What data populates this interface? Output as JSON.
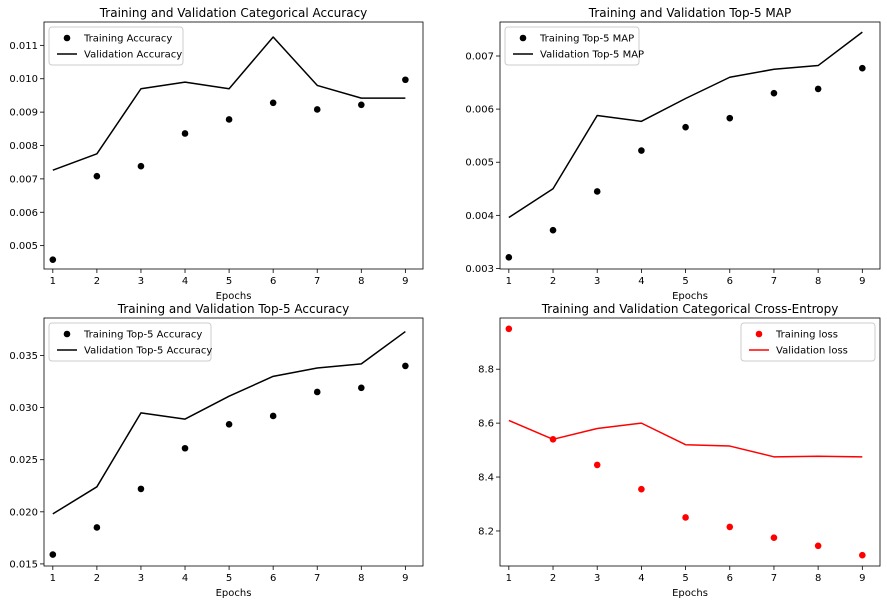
{
  "chart_data": [
    {
      "type": "line",
      "title": "Training and Validation Categorical Accuracy",
      "xlabel": "Epochs",
      "ylabel": "",
      "x": [
        1,
        2,
        3,
        4,
        5,
        6,
        7,
        8,
        9
      ],
      "xlim": [
        0.8,
        9.4
      ],
      "ylim": [
        0.0043,
        0.0117
      ],
      "yticks": [
        0.005,
        0.006,
        0.007,
        0.008,
        0.009,
        0.01,
        0.011
      ],
      "yticklabels": [
        "0.005",
        "0.006",
        "0.007",
        "0.008",
        "0.009",
        "0.010",
        "0.011"
      ],
      "legend_position": "upper-left",
      "series": [
        {
          "name": "Training Accuracy",
          "style": "dots",
          "color": "#000000",
          "values": [
            0.00458,
            0.00708,
            0.00738,
            0.00836,
            0.00878,
            0.00928,
            0.00908,
            0.00922,
            0.00997
          ]
        },
        {
          "name": "Validation Accuracy",
          "style": "line",
          "color": "#000000",
          "values": [
            0.00726,
            0.00775,
            0.0097,
            0.0099,
            0.0097,
            0.01125,
            0.0098,
            0.00942,
            0.00942
          ]
        }
      ]
    },
    {
      "type": "line",
      "title": "Training and Validation Top-5 MAP",
      "xlabel": "Epochs",
      "ylabel": "",
      "x": [
        1,
        2,
        3,
        4,
        5,
        6,
        7,
        8,
        9
      ],
      "xlim": [
        0.8,
        9.4
      ],
      "ylim": [
        0.00299,
        0.00764
      ],
      "yticks": [
        0.003,
        0.004,
        0.005,
        0.006,
        0.007
      ],
      "yticklabels": [
        "0.003",
        "0.004",
        "0.005",
        "0.006",
        "0.007"
      ],
      "legend_position": "upper-left",
      "series": [
        {
          "name": "Training Top-5 MAP",
          "style": "dots",
          "color": "#000000",
          "values": [
            0.00321,
            0.00372,
            0.00445,
            0.00522,
            0.00566,
            0.00583,
            0.0063,
            0.00638,
            0.00677
          ]
        },
        {
          "name": "Validation Top-5 MAP",
          "style": "line",
          "color": "#000000",
          "values": [
            0.00396,
            0.0045,
            0.00588,
            0.00577,
            0.0062,
            0.0066,
            0.00675,
            0.00682,
            0.00745
          ]
        }
      ]
    },
    {
      "type": "line",
      "title": "Training and Validation Top-5 Accuracy",
      "xlabel": "Epochs",
      "ylabel": "",
      "x": [
        1,
        2,
        3,
        4,
        5,
        6,
        7,
        8,
        9
      ],
      "xlim": [
        0.8,
        9.4
      ],
      "ylim": [
        0.0148,
        0.0386
      ],
      "yticks": [
        0.015,
        0.02,
        0.025,
        0.03,
        0.035
      ],
      "yticklabels": [
        "0.015",
        "0.020",
        "0.025",
        "0.030",
        "0.035"
      ],
      "legend_position": "upper-left",
      "series": [
        {
          "name": "Training Top-5 Accuracy",
          "style": "dots",
          "color": "#000000",
          "values": [
            0.0159,
            0.0185,
            0.0222,
            0.0261,
            0.0284,
            0.0292,
            0.0315,
            0.0319,
            0.034
          ]
        },
        {
          "name": "Validation Top-5 Accuracy",
          "style": "line",
          "color": "#000000",
          "values": [
            0.0198,
            0.0224,
            0.0295,
            0.0289,
            0.0311,
            0.033,
            0.0338,
            0.0342,
            0.0373
          ]
        }
      ]
    },
    {
      "type": "line",
      "title": "Training and Validation Categorical Cross-Entropy",
      "xlabel": "Epochs",
      "ylabel": "",
      "x": [
        1,
        2,
        3,
        4,
        5,
        6,
        7,
        8,
        9
      ],
      "xlim": [
        0.8,
        9.4
      ],
      "ylim": [
        8.07,
        8.99
      ],
      "yticks": [
        8.2,
        8.4,
        8.6,
        8.8
      ],
      "yticklabels": [
        "8.2",
        "8.4",
        "8.6",
        "8.8"
      ],
      "legend_position": "upper-right",
      "series": [
        {
          "name": "Training loss",
          "style": "dots",
          "color": "#ff0000",
          "values": [
            8.95,
            8.54,
            8.445,
            8.355,
            8.25,
            8.215,
            8.175,
            8.145,
            8.11
          ]
        },
        {
          "name": "Validation loss",
          "style": "line",
          "color": "#ff0000",
          "values": [
            8.61,
            8.54,
            8.58,
            8.6,
            8.52,
            8.515,
            8.475,
            8.477,
            8.475
          ]
        }
      ]
    }
  ]
}
